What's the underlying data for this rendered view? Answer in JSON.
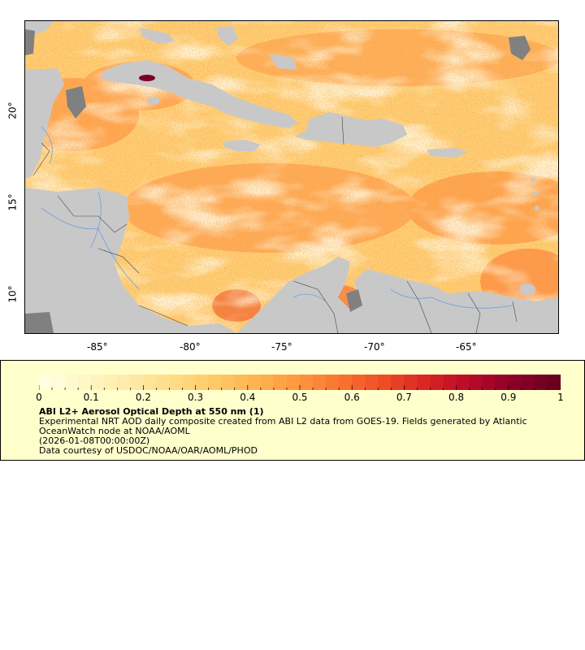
{
  "map": {
    "lon_ticks": [
      "-85°",
      "-80°",
      "-75°",
      "-70°",
      "-65°"
    ],
    "lat_ticks": [
      "20°",
      "15°",
      "10°"
    ]
  },
  "legend": {
    "colorbar_ticks": [
      "0",
      "0.1",
      "0.2",
      "0.3",
      "0.4",
      "0.5",
      "0.6",
      "0.7",
      "0.8",
      "0.9",
      "1"
    ],
    "colors": [
      "#fffee0",
      "#fff6c4",
      "#ffeaa6",
      "#ffdc88",
      "#ffc967",
      "#ffb24f",
      "#ff963f",
      "#f9722f",
      "#ee4b26",
      "#d82424",
      "#b8092a",
      "#8e0027",
      "#6b001d"
    ],
    "title": "ABI L2+ Aerosol Optical Depth at 550 nm (1)",
    "description": "Experimental NRT AOD daily composite created from ABI L2 data from GOES-19. Fields generated by Atlantic OceanWatch node at NOAA/AOML",
    "date": "(2026-01-08T00:00:00Z)",
    "credit": "Data courtesy of USDOC/NOAA/OAR/AOML/PHOD"
  },
  "colors": {
    "land": "#c8c8c8",
    "no_data": "#808080",
    "legend_bg": "#ffffcc"
  }
}
